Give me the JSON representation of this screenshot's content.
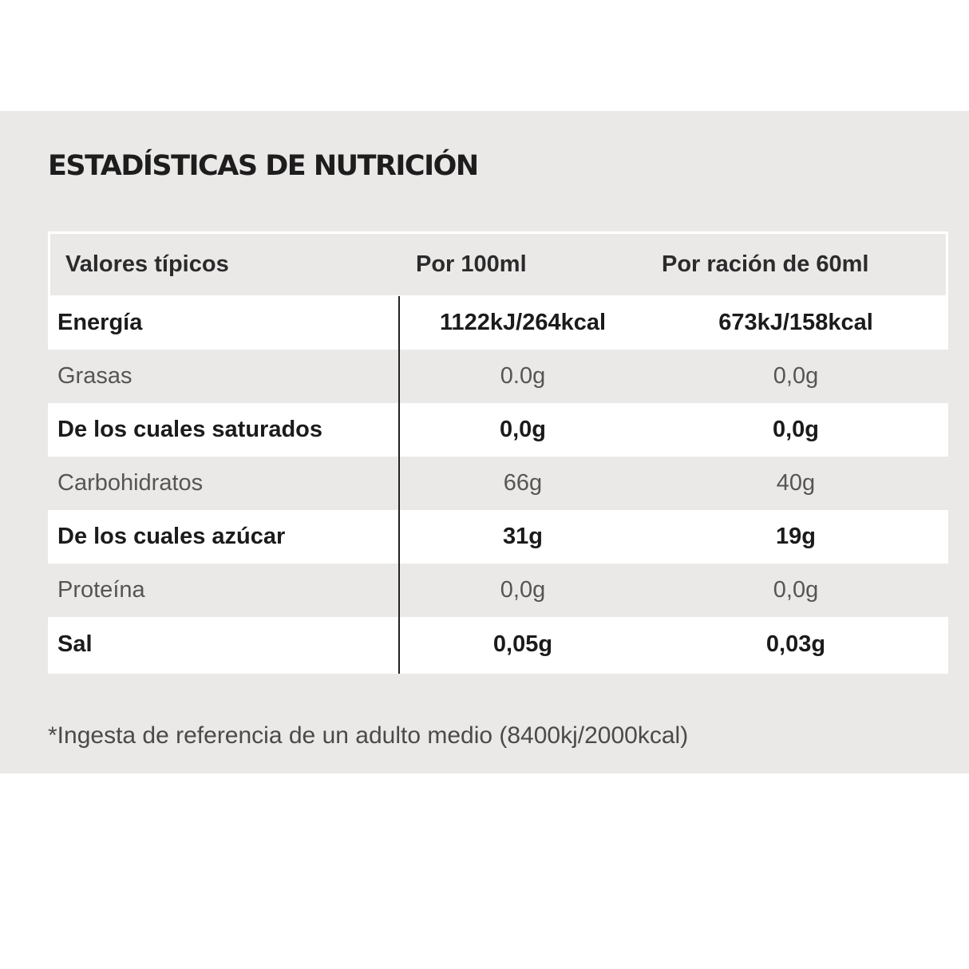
{
  "title": "ESTADÍSTICAS DE NUTRICIÓN",
  "table": {
    "headers": [
      "Valores típicos",
      "Por 100ml",
      "Por ración de 60ml"
    ],
    "rows": [
      {
        "label": "Energía",
        "per100": "1122kJ/264kcal",
        "per_serving": "673kJ/158kcal"
      },
      {
        "label": "Grasas",
        "per100": "0.0g",
        "per_serving": "0,0g"
      },
      {
        "label": "De los cuales saturados",
        "per100": "0,0g",
        "per_serving": "0,0g"
      },
      {
        "label": "Carbohidratos",
        "per100": "66g",
        "per_serving": "40g"
      },
      {
        "label": "De los cuales azúcar",
        "per100": "31g",
        "per_serving": "19g"
      },
      {
        "label": "Proteína",
        "per100": "0,0g",
        "per_serving": "0,0g"
      },
      {
        "label": "Sal",
        "per100": "0,05g",
        "per_serving": "0,03g"
      }
    ]
  },
  "footnote": "*Ingesta de referencia de un adulto medio (8400kj/2000kcal)"
}
